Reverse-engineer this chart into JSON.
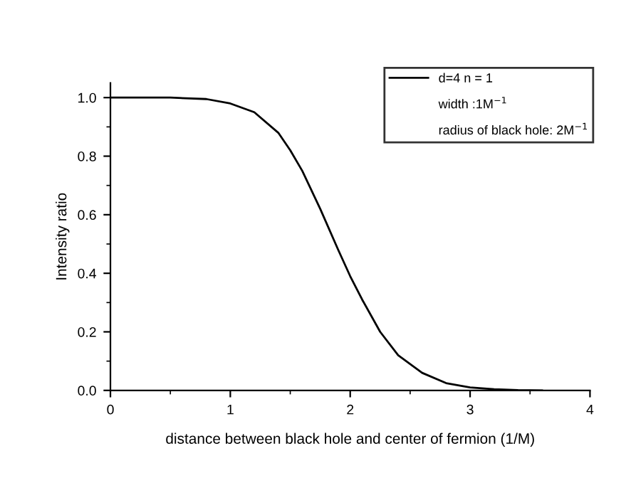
{
  "chart_data": {
    "type": "line",
    "xlabel": "distance between black hole and center of fermion (1/M)",
    "ylabel": "Intensity ratio",
    "series": [
      {
        "name": "d=4 n = 1",
        "color": "#000000",
        "x": [
          0,
          0.5,
          0.8,
          1.0,
          1.2,
          1.4,
          1.5,
          1.6,
          1.75,
          1.9,
          2.0,
          2.1,
          2.25,
          2.4,
          2.6,
          2.8,
          3.0,
          3.2,
          3.4,
          3.6
        ],
        "values": [
          1.0,
          1.0,
          0.995,
          0.98,
          0.95,
          0.88,
          0.82,
          0.75,
          0.62,
          0.48,
          0.39,
          0.31,
          0.2,
          0.12,
          0.06,
          0.025,
          0.01,
          0.004,
          0.001,
          0.0
        ]
      }
    ],
    "annotations": [
      "width :1M$^{−1}$",
      "radius of black hole: 2M$^{−1}$"
    ],
    "xlim": [
      0,
      4
    ],
    "xticks": [
      0,
      1,
      2,
      3,
      4
    ],
    "ylim": [
      0,
      1.05
    ],
    "yticks": [
      {
        "value": 0,
        "label": "0.0"
      },
      0.2,
      0.4,
      0.6,
      0.8,
      {
        "value": 1,
        "label": "1.0"
      }
    ],
    "legend": "top right",
    "grid": false,
    "marker": "none",
    "line_style": "solid"
  }
}
